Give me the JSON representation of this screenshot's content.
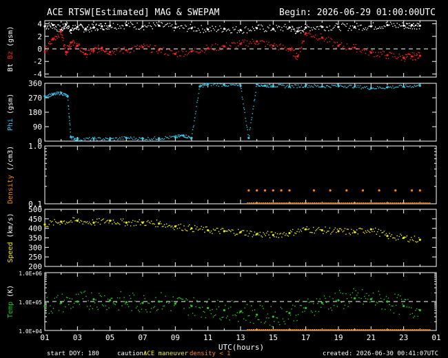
{
  "header": {
    "title": "ACE RTSW[Estimated] MAG & SWEPAM",
    "begin": "Begin: 2026-06-29 01:00:00UTC"
  },
  "footer": {
    "start_doy": "start DOY: 180",
    "caution_label": "caution:",
    "maneuver": "ACE maneuver",
    "density_warn": "density < 1",
    "created": "created: 2026-06-30 00:41:07UTC"
  },
  "colors": {
    "bt": "#ffffff",
    "bz": "#ff2020",
    "phi": "#33ccee",
    "density": "#ff8800",
    "speed": "#eeee00",
    "temp": "#22cc22",
    "frame": "#ffffff"
  },
  "chart_data": [
    {
      "type": "scatter",
      "panel": "mag",
      "ylabel": "Bt Bz (gsm)",
      "ylabel_parts": [
        "Bt",
        "Bz",
        "(gsm)"
      ],
      "ylim": [
        -4.5,
        4.5
      ],
      "yticks": [
        -4,
        -2,
        0,
        2,
        4
      ],
      "dashed_ref": 0,
      "series": [
        {
          "name": "Bt",
          "color": "#ffffff",
          "x": [
            1,
            1.5,
            2,
            2.3,
            2.6,
            3,
            3.5,
            4,
            4.5,
            5,
            6,
            7,
            8,
            9,
            10,
            11,
            12,
            13,
            14,
            15,
            16,
            16.5,
            17,
            18,
            19,
            20,
            21,
            22,
            23,
            23.5,
            24
          ],
          "values": [
            3.6,
            3.8,
            3.0,
            3.9,
            3.0,
            3.5,
            3.2,
            3.4,
            3.6,
            3.7,
            3.8,
            3.6,
            3.7,
            3.4,
            3.3,
            3.1,
            3.2,
            3.0,
            3.3,
            3.2,
            3.4,
            2.8,
            3.4,
            3.5,
            3.5,
            3.5,
            3.6,
            3.8,
            3.7,
            3.8,
            3.7
          ]
        },
        {
          "name": "Bz",
          "color": "#ff2020",
          "x": [
            1,
            1.5,
            2,
            2.3,
            2.6,
            3,
            3.5,
            4,
            4.5,
            5,
            6,
            7,
            8,
            9,
            10,
            11,
            12,
            13,
            14,
            15,
            16,
            16.5,
            17,
            18,
            19,
            20,
            21,
            22,
            23,
            23.5,
            24
          ],
          "values": [
            -0.5,
            1.5,
            2.8,
            -0.5,
            1.0,
            0.5,
            -0.8,
            -0.3,
            0.2,
            -0.5,
            -0.2,
            0.3,
            -0.2,
            -0.8,
            -0.4,
            0.1,
            0.4,
            0.8,
            1.2,
            0.5,
            0.0,
            -1.2,
            2.5,
            1.8,
            0.5,
            0.2,
            -0.6,
            -1.0,
            -1.4,
            -1.2,
            -1.1
          ]
        }
      ]
    },
    {
      "type": "scatter",
      "panel": "phi",
      "ylabel": "Phi (gsm)",
      "ylim": [
        0,
        360
      ],
      "yticks": [
        0,
        90,
        180,
        270,
        360
      ],
      "series": [
        {
          "name": "Phi",
          "color": "#33ccee",
          "x": [
            1,
            1.5,
            2,
            2.4,
            2.6,
            3,
            4,
            5,
            6,
            7,
            8,
            9,
            9.5,
            10,
            10.5,
            11,
            12,
            13,
            13.5,
            14,
            14.5,
            15,
            16,
            17,
            18,
            19,
            20,
            21,
            22,
            23,
            24
          ],
          "values": [
            280,
            290,
            300,
            280,
            25,
            10,
            15,
            12,
            20,
            15,
            18,
            25,
            35,
            20,
            340,
            355,
            350,
            345,
            20,
            355,
            345,
            345,
            340,
            345,
            340,
            345,
            340,
            330,
            335,
            340,
            345
          ]
        }
      ]
    },
    {
      "type": "scatter",
      "panel": "density",
      "ylabel": "Density (/cm3)",
      "scale": "log",
      "ylim": [
        0.1,
        1.0
      ],
      "yticks": [
        "0.1",
        "1.0"
      ],
      "series": [
        {
          "name": "Density",
          "color": "#ff8800",
          "x": [
            13.5,
            14.0,
            14.5,
            15.0,
            15.5,
            16.0,
            17.5,
            18.5,
            19.5,
            20.5,
            21.5,
            22.5,
            23.5,
            24.0
          ],
          "values": [
            0.17,
            0.17,
            0.17,
            0.17,
            0.17,
            0.17,
            0.17,
            0.17,
            0.17,
            0.17,
            0.17,
            0.17,
            0.17,
            0.17
          ]
        }
      ]
    },
    {
      "type": "scatter",
      "panel": "speed",
      "ylabel": "Speed (km/s)",
      "ylim": [
        200,
        500
      ],
      "yticks": [
        200,
        250,
        300,
        350,
        400,
        450,
        500
      ],
      "series": [
        {
          "name": "Speed",
          "color": "#eeee00",
          "x": [
            1,
            2,
            3,
            4,
            5,
            6,
            7,
            8,
            9,
            10,
            11,
            12,
            13,
            14,
            15,
            16,
            17,
            18,
            19,
            20,
            21,
            22,
            23,
            24
          ],
          "values": [
            420,
            435,
            440,
            430,
            440,
            430,
            430,
            425,
            410,
            400,
            390,
            385,
            380,
            370,
            365,
            375,
            395,
            390,
            385,
            380,
            395,
            360,
            350,
            340
          ]
        }
      ]
    },
    {
      "type": "scatter",
      "panel": "temp",
      "ylabel": "Temp (K)",
      "scale": "log",
      "ylim": [
        10000,
        1000000
      ],
      "yticks": [
        "1.0E+04",
        "1.0E+05",
        "1.0E+06"
      ],
      "dashed_ref": 100000,
      "series": [
        {
          "name": "Temp",
          "color": "#22cc22",
          "x": [
            1,
            2,
            3,
            4,
            5,
            6,
            7,
            8,
            9,
            10,
            11,
            12,
            13,
            14,
            15,
            16,
            17,
            18,
            19,
            20,
            21,
            22,
            23,
            24
          ],
          "values": [
            70000,
            90000,
            100000,
            120000,
            110000,
            95000,
            90000,
            100000,
            85000,
            70000,
            60000,
            50000,
            45000,
            35000,
            30000,
            40000,
            60000,
            90000,
            110000,
            130000,
            120000,
            100000,
            70000,
            50000
          ]
        }
      ]
    }
  ],
  "xaxis": {
    "label": "UTC(hours)",
    "ticks": [
      "01",
      "03",
      "05",
      "07",
      "09",
      "11",
      "13",
      "15",
      "17",
      "19",
      "21",
      "23",
      "01"
    ],
    "range": [
      1,
      25
    ]
  }
}
